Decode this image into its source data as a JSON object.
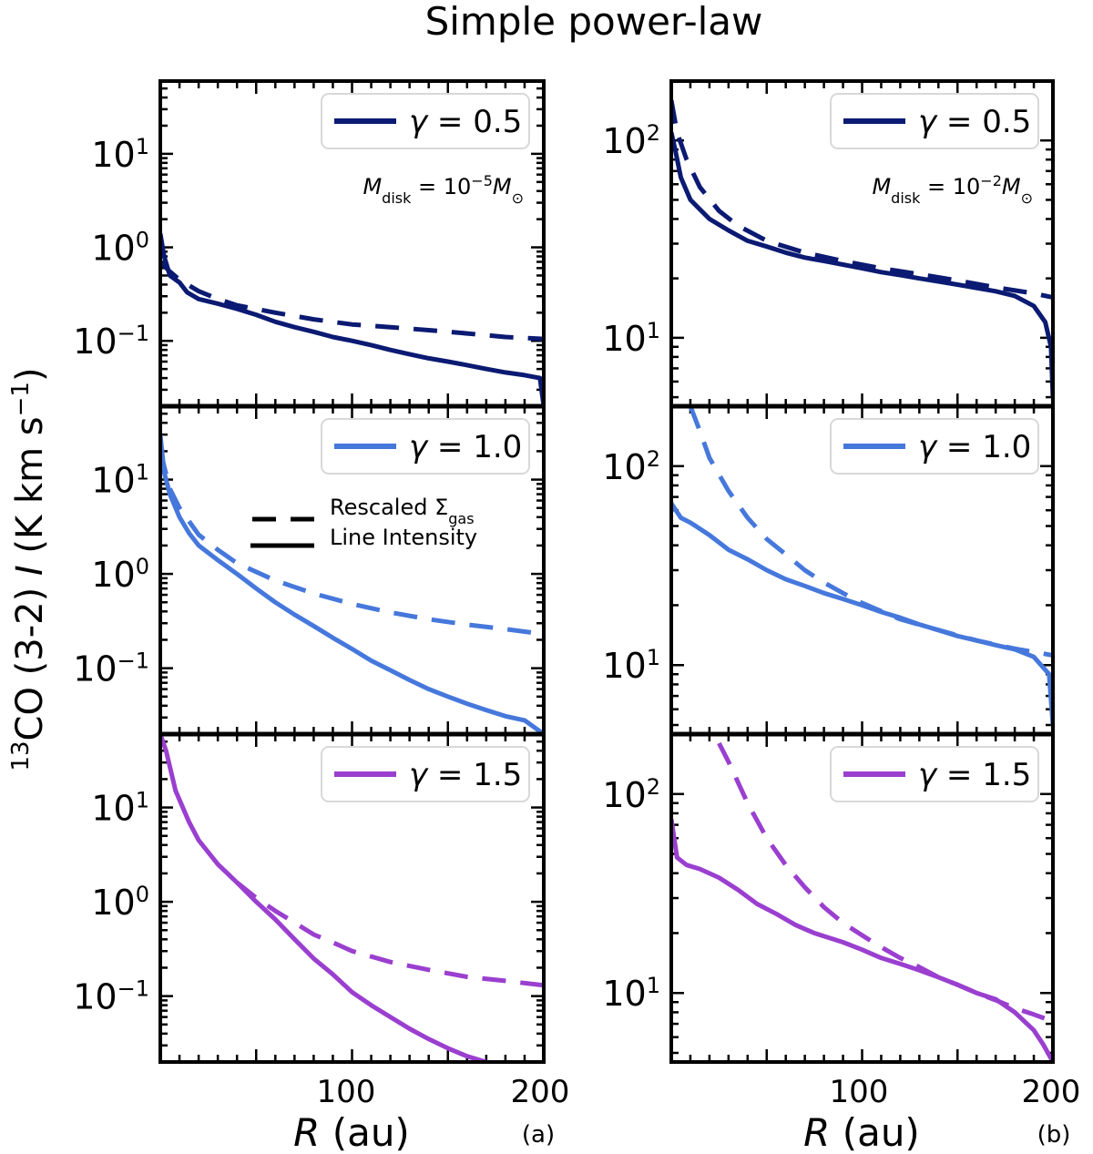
{
  "figure": {
    "title": "Simple power-law",
    "ylabel_main": "CO (3-2) ",
    "ylabel_isotope": "13",
    "ylabel_var": "I",
    "ylabel_units": " (K km s",
    "ylabel_units_exp": "−1",
    "ylabel_close": ")",
    "xlabel_var": "R",
    "xlabel_units": " (au)",
    "xtick_labels": [
      "100",
      "200"
    ],
    "column_labels": [
      "(a)",
      "(b)"
    ],
    "mass_prefix": "M",
    "mass_sub": "disk",
    "mass_eq": " = 10",
    "mass_mid": "M",
    "mass_sun": "⊙",
    "legend_line_label": "Rescaled Σ",
    "legend_line_sub": "gas",
    "legend_line_label2": "Line Intensity",
    "gamma_symbol": "γ",
    "gamma_eq": " = "
  },
  "colors": {
    "gamma_0.5": "#0b1a72",
    "gamma_1.0": "#4678dc",
    "gamma_1.5": "#9a3fcf"
  },
  "chart_data": [
    {
      "type": "line",
      "panel": "a",
      "row": 1,
      "gamma": "0.5",
      "mass_exp": "−5",
      "yscale": "log",
      "xlim": [
        0,
        200
      ],
      "ylim": [
        0.02,
        60
      ],
      "yticks": [
        {
          "v": 10,
          "base": "10",
          "exp": "1"
        },
        {
          "v": 1,
          "base": "10",
          "exp": "0"
        },
        {
          "v": 0.1,
          "base": "10",
          "exp": "−1"
        }
      ],
      "series": [
        {
          "style": "solid",
          "points": [
            [
              0,
              1.4
            ],
            [
              2,
              0.8
            ],
            [
              5,
              0.5
            ],
            [
              10,
              0.42
            ],
            [
              14,
              0.33
            ],
            [
              20,
              0.28
            ],
            [
              30,
              0.25
            ],
            [
              40,
              0.22
            ],
            [
              50,
              0.19
            ],
            [
              60,
              0.16
            ],
            [
              70,
              0.14
            ],
            [
              80,
              0.125
            ],
            [
              90,
              0.11
            ],
            [
              100,
              0.1
            ],
            [
              110,
              0.09
            ],
            [
              120,
              0.08
            ],
            [
              130,
              0.072
            ],
            [
              140,
              0.065
            ],
            [
              150,
              0.06
            ],
            [
              160,
              0.055
            ],
            [
              170,
              0.05
            ],
            [
              180,
              0.046
            ],
            [
              190,
              0.043
            ],
            [
              198,
              0.04
            ],
            [
              200,
              0.02
            ]
          ]
        },
        {
          "style": "dashed",
          "points": [
            [
              0,
              0.7
            ],
            [
              5,
              0.55
            ],
            [
              10,
              0.45
            ],
            [
              20,
              0.34
            ],
            [
              30,
              0.28
            ],
            [
              40,
              0.24
            ],
            [
              60,
              0.2
            ],
            [
              80,
              0.17
            ],
            [
              100,
              0.15
            ],
            [
              120,
              0.14
            ],
            [
              140,
              0.13
            ],
            [
              160,
              0.12
            ],
            [
              180,
              0.11
            ],
            [
              200,
              0.105
            ]
          ]
        }
      ]
    },
    {
      "type": "line",
      "panel": "a",
      "row": 2,
      "gamma": "1.0",
      "yscale": "log",
      "xlim": [
        0,
        200
      ],
      "ylim": [
        0.02,
        60
      ],
      "yticks": [
        {
          "v": 10,
          "base": "10",
          "exp": "1"
        },
        {
          "v": 1,
          "base": "10",
          "exp": "0"
        },
        {
          "v": 0.1,
          "base": "10",
          "exp": "−1"
        }
      ],
      "series": [
        {
          "style": "solid",
          "points": [
            [
              0,
              30
            ],
            [
              2,
              12
            ],
            [
              5,
              7
            ],
            [
              10,
              4
            ],
            [
              15,
              2.7
            ],
            [
              20,
              2
            ],
            [
              30,
              1.4
            ],
            [
              40,
              1
            ],
            [
              50,
              0.7
            ],
            [
              60,
              0.5
            ],
            [
              70,
              0.37
            ],
            [
              80,
              0.28
            ],
            [
              90,
              0.21
            ],
            [
              100,
              0.16
            ],
            [
              110,
              0.12
            ],
            [
              120,
              0.095
            ],
            [
              130,
              0.075
            ],
            [
              140,
              0.06
            ],
            [
              150,
              0.05
            ],
            [
              160,
              0.042
            ],
            [
              170,
              0.036
            ],
            [
              180,
              0.031
            ],
            [
              190,
              0.028
            ],
            [
              200,
              0.02
            ]
          ]
        },
        {
          "style": "dashed",
          "points": [
            [
              0,
              20
            ],
            [
              5,
              8
            ],
            [
              10,
              5
            ],
            [
              20,
              2.6
            ],
            [
              30,
              1.8
            ],
            [
              40,
              1.3
            ],
            [
              60,
              0.85
            ],
            [
              80,
              0.62
            ],
            [
              100,
              0.48
            ],
            [
              120,
              0.39
            ],
            [
              140,
              0.33
            ],
            [
              160,
              0.29
            ],
            [
              180,
              0.26
            ],
            [
              200,
              0.23
            ]
          ]
        }
      ]
    },
    {
      "type": "line",
      "panel": "a",
      "row": 3,
      "gamma": "1.5",
      "yscale": "log",
      "xlim": [
        0,
        200
      ],
      "ylim": [
        0.02,
        60
      ],
      "yticks": [
        {
          "v": 10,
          "base": "10",
          "exp": "1"
        },
        {
          "v": 1,
          "base": "10",
          "exp": "0"
        },
        {
          "v": 0.1,
          "base": "10",
          "exp": "−1"
        }
      ],
      "series": [
        {
          "style": "solid",
          "points": [
            [
              0,
              60
            ],
            [
              3,
              40
            ],
            [
              8,
              15
            ],
            [
              15,
              7
            ],
            [
              20,
              4.5
            ],
            [
              30,
              2.5
            ],
            [
              40,
              1.6
            ],
            [
              50,
              1
            ],
            [
              60,
              0.65
            ],
            [
              70,
              0.4
            ],
            [
              80,
              0.25
            ],
            [
              90,
              0.17
            ],
            [
              100,
              0.11
            ],
            [
              110,
              0.08
            ],
            [
              120,
              0.06
            ],
            [
              130,
              0.045
            ],
            [
              140,
              0.035
            ],
            [
              150,
              0.028
            ],
            [
              160,
              0.023
            ],
            [
              170,
              0.02
            ]
          ]
        },
        {
          "style": "dashed",
          "points": [
            [
              40,
              1.6
            ],
            [
              50,
              1.1
            ],
            [
              60,
              0.8
            ],
            [
              70,
              0.6
            ],
            [
              80,
              0.45
            ],
            [
              90,
              0.37
            ],
            [
              100,
              0.3
            ],
            [
              120,
              0.23
            ],
            [
              140,
              0.19
            ],
            [
              160,
              0.16
            ],
            [
              180,
              0.145
            ],
            [
              200,
              0.13
            ]
          ]
        }
      ]
    },
    {
      "type": "line",
      "panel": "b",
      "row": 1,
      "gamma": "0.5",
      "mass_exp": "−2",
      "yscale": "log",
      "xlim": [
        0,
        200
      ],
      "ylim": [
        4.5,
        200
      ],
      "yticks": [
        {
          "v": 100,
          "base": "10",
          "exp": "2"
        },
        {
          "v": 10,
          "base": "10",
          "exp": "1"
        }
      ],
      "series": [
        {
          "style": "solid",
          "points": [
            [
              0,
              110
            ],
            [
              2,
              90
            ],
            [
              5,
              65
            ],
            [
              10,
              50
            ],
            [
              20,
              40
            ],
            [
              30,
              35
            ],
            [
              40,
              31
            ],
            [
              50,
              29
            ],
            [
              60,
              27
            ],
            [
              70,
              25.5
            ],
            [
              80,
              24.5
            ],
            [
              90,
              23.5
            ],
            [
              100,
              22.5
            ],
            [
              110,
              21.5
            ],
            [
              120,
              20.8
            ],
            [
              130,
              20
            ],
            [
              140,
              19.3
            ],
            [
              150,
              18.6
            ],
            [
              160,
              17.9
            ],
            [
              170,
              17.2
            ],
            [
              180,
              16.3
            ],
            [
              190,
              14.5
            ],
            [
              196,
              12
            ],
            [
              199,
              9
            ],
            [
              200,
              5
            ]
          ]
        },
        {
          "style": "dashed",
          "points": [
            [
              0,
              160
            ],
            [
              3,
              110
            ],
            [
              8,
              80
            ],
            [
              15,
              58
            ],
            [
              25,
              44
            ],
            [
              35,
              37
            ],
            [
              50,
              31
            ],
            [
              70,
              27
            ],
            [
              90,
              24.5
            ],
            [
              110,
              22.5
            ],
            [
              130,
              21
            ],
            [
              150,
              19.5
            ],
            [
              170,
              18
            ],
            [
              190,
              16.8
            ],
            [
              200,
              16
            ]
          ]
        }
      ]
    },
    {
      "type": "line",
      "panel": "b",
      "row": 2,
      "gamma": "1.0",
      "yscale": "log",
      "xlim": [
        0,
        200
      ],
      "ylim": [
        4.5,
        200
      ],
      "yticks": [
        {
          "v": 100,
          "base": "10",
          "exp": "2"
        },
        {
          "v": 10,
          "base": "10",
          "exp": "1"
        }
      ],
      "series": [
        {
          "style": "solid",
          "points": [
            [
              0,
              65
            ],
            [
              5,
              55
            ],
            [
              10,
              52
            ],
            [
              20,
              45
            ],
            [
              30,
              38
            ],
            [
              40,
              34
            ],
            [
              50,
              30
            ],
            [
              60,
              27
            ],
            [
              70,
              25
            ],
            [
              80,
              23
            ],
            [
              90,
              21.5
            ],
            [
              100,
              20
            ],
            [
              110,
              18.5
            ],
            [
              120,
              17.3
            ],
            [
              130,
              16
            ],
            [
              140,
              15
            ],
            [
              150,
              14
            ],
            [
              160,
              13.3
            ],
            [
              170,
              12.6
            ],
            [
              180,
              12
            ],
            [
              190,
              11
            ],
            [
              198,
              9
            ],
            [
              200,
              5
            ]
          ]
        },
        {
          "style": "dashed",
          "points": [
            [
              10,
              200
            ],
            [
              15,
              150
            ],
            [
              20,
              110
            ],
            [
              30,
              75
            ],
            [
              40,
              55
            ],
            [
              50,
              43
            ],
            [
              60,
              36
            ],
            [
              70,
              30
            ],
            [
              80,
              26
            ],
            [
              90,
              23
            ],
            [
              100,
              20.5
            ],
            [
              120,
              17
            ],
            [
              140,
              15
            ],
            [
              160,
              13.3
            ],
            [
              180,
              12.1
            ],
            [
              200,
              11.2
            ]
          ]
        }
      ]
    },
    {
      "type": "line",
      "panel": "b",
      "row": 3,
      "gamma": "1.5",
      "yscale": "log",
      "xlim": [
        0,
        200
      ],
      "ylim": [
        4.5,
        200
      ],
      "yticks": [
        {
          "v": 100,
          "base": "10",
          "exp": "2"
        },
        {
          "v": 10,
          "base": "10",
          "exp": "1"
        }
      ],
      "series": [
        {
          "style": "solid",
          "points": [
            [
              0,
              75
            ],
            [
              3,
              48
            ],
            [
              8,
              44
            ],
            [
              15,
              42
            ],
            [
              25,
              38
            ],
            [
              35,
              33
            ],
            [
              45,
              28
            ],
            [
              55,
              25
            ],
            [
              65,
              22
            ],
            [
              75,
              20
            ],
            [
              90,
              18
            ],
            [
              100,
              16.5
            ],
            [
              110,
              15
            ],
            [
              120,
              14
            ],
            [
              130,
              13
            ],
            [
              140,
              12
            ],
            [
              150,
              11
            ],
            [
              160,
              10
            ],
            [
              170,
              9.3
            ],
            [
              180,
              8
            ],
            [
              190,
              6.5
            ],
            [
              195,
              5.5
            ],
            [
              200,
              4.5
            ]
          ]
        },
        {
          "style": "dashed",
          "points": [
            [
              25,
              180
            ],
            [
              30,
              145
            ],
            [
              40,
              90
            ],
            [
              50,
              60
            ],
            [
              60,
              44
            ],
            [
              70,
              34
            ],
            [
              80,
              27
            ],
            [
              90,
              22.5
            ],
            [
              100,
              19.5
            ],
            [
              110,
              17
            ],
            [
              120,
              15
            ],
            [
              130,
              13.5
            ],
            [
              140,
              12
            ],
            [
              150,
              11
            ],
            [
              160,
              10
            ],
            [
              170,
              9.2
            ],
            [
              180,
              8.4
            ],
            [
              190,
              7.8
            ],
            [
              200,
              7.2
            ]
          ]
        }
      ]
    }
  ]
}
